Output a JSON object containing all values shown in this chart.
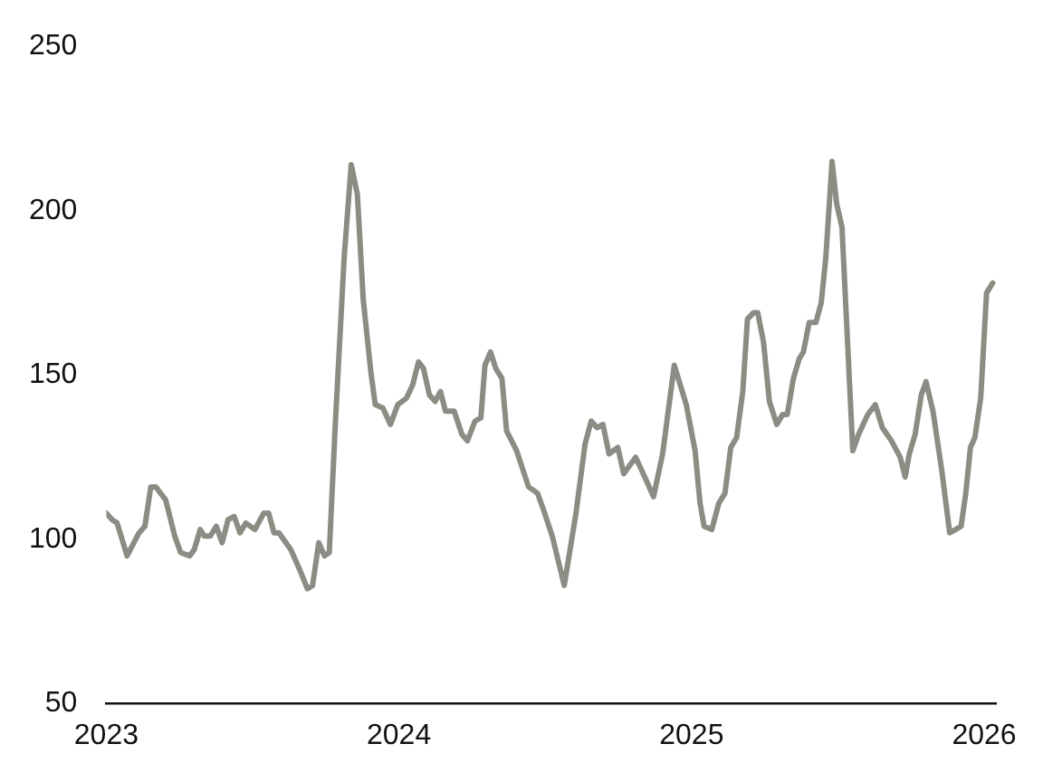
{
  "chart_data": {
    "type": "line",
    "xlim": [
      2023,
      2026.04
    ],
    "xticks": [
      2023,
      2024,
      2025,
      2026
    ],
    "ylim": [
      50,
      250
    ],
    "yticks": [
      50,
      100,
      150,
      200,
      250
    ],
    "marker": "none",
    "line_style": "solid",
    "series": [
      {
        "color": "#8c8c84",
        "x": [
          2023.0,
          2023.02,
          2023.037,
          2023.071,
          2023.112,
          2023.132,
          2023.152,
          2023.169,
          2023.203,
          2023.234,
          2023.254,
          2023.285,
          2023.301,
          2023.321,
          2023.335,
          2023.355,
          2023.376,
          2023.396,
          2023.416,
          2023.437,
          2023.457,
          2023.477,
          2023.508,
          2023.538,
          2023.555,
          2023.573,
          2023.59,
          2023.63,
          2023.66,
          2023.687,
          2023.705,
          2023.726,
          2023.746,
          2023.762,
          2023.782,
          2023.813,
          2023.837,
          2023.858,
          2023.878,
          2023.904,
          2023.919,
          2023.945,
          2023.971,
          2023.996,
          2024.026,
          2024.047,
          2024.067,
          2024.084,
          2024.104,
          2024.124,
          2024.142,
          2024.159,
          2024.189,
          2024.215,
          2024.234,
          2024.26,
          2024.28,
          2024.294,
          2024.313,
          2024.331,
          2024.352,
          2024.368,
          2024.402,
          2024.443,
          2024.474,
          2024.494,
          2024.524,
          2024.565,
          2024.605,
          2024.636,
          2024.657,
          2024.677,
          2024.697,
          2024.718,
          2024.748,
          2024.768,
          2024.809,
          2024.84,
          2024.87,
          2024.901,
          2024.941,
          2024.982,
          2025.012,
          2025.029,
          2025.043,
          2025.069,
          2025.093,
          2025.114,
          2025.134,
          2025.154,
          2025.175,
          2025.191,
          2025.212,
          2025.226,
          2025.246,
          2025.266,
          2025.291,
          2025.311,
          2025.327,
          2025.348,
          2025.368,
          2025.382,
          2025.402,
          2025.425,
          2025.443,
          2025.459,
          2025.48,
          2025.496,
          2025.514,
          2025.551,
          2025.571,
          2025.602,
          2025.628,
          2025.652,
          2025.683,
          2025.713,
          2025.73,
          2025.744,
          2025.764,
          2025.785,
          2025.801,
          2025.825,
          2025.855,
          2025.882,
          2025.902,
          2025.921,
          2025.937,
          2025.953,
          2025.968,
          2025.988,
          2026.008,
          2026.029
        ],
        "values": [
          108,
          106,
          105,
          95,
          102,
          104,
          116,
          116,
          112,
          101,
          96,
          95,
          97,
          103,
          101,
          101,
          104,
          99,
          106,
          107,
          102,
          105,
          103,
          108,
          108,
          102,
          102,
          97,
          91,
          85,
          86,
          99,
          95,
          96,
          134,
          186,
          214,
          205,
          173,
          151,
          141,
          140,
          135,
          141,
          143,
          147,
          154,
          152,
          144,
          142,
          145,
          139,
          139,
          132,
          130,
          136,
          137,
          153,
          157,
          152,
          149,
          133,
          127,
          116,
          114,
          109,
          101,
          86,
          108,
          129,
          136,
          134,
          135,
          126,
          128,
          120,
          125,
          119,
          113,
          126,
          153,
          141,
          127,
          111,
          104,
          103,
          111,
          114,
          128,
          131,
          145,
          167,
          169,
          169,
          160,
          142,
          135,
          138,
          138,
          149,
          155,
          157,
          166,
          166,
          172,
          186,
          215,
          202,
          195,
          127,
          132,
          138,
          141,
          134,
          130,
          125,
          119,
          126,
          132,
          144,
          148,
          139,
          121,
          102,
          103,
          104,
          114,
          128,
          131,
          143,
          175,
          178
        ]
      }
    ]
  }
}
